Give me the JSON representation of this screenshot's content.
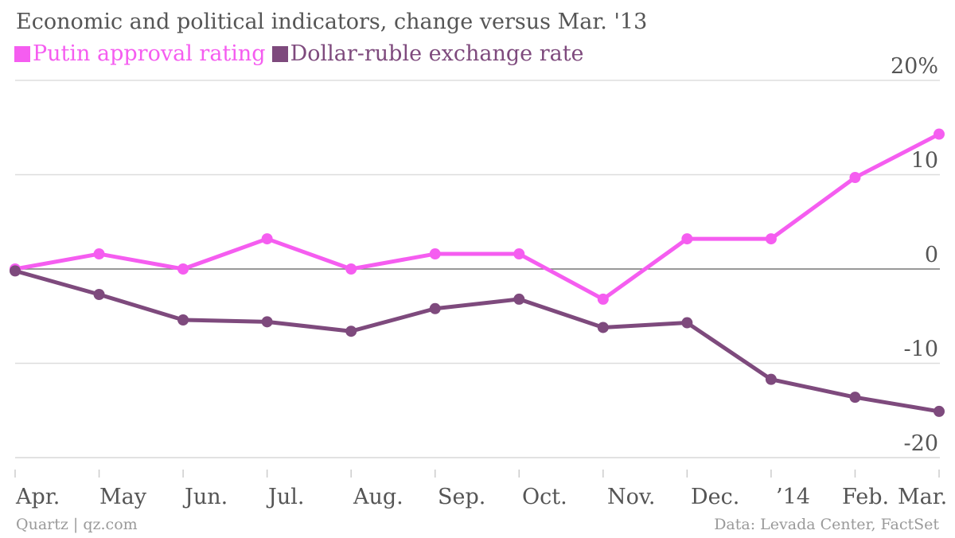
{
  "chart_data": {
    "type": "line",
    "title": "Economic and political indicators, change versus Mar. '13",
    "categories": [
      "Apr.",
      "May",
      "Jun.",
      "Jul.",
      "Aug.",
      "Sep.",
      "Oct.",
      "Nov.",
      "Dec.",
      "’14",
      "Feb.",
      "Mar."
    ],
    "y_ticks": [
      "20%",
      "10",
      "0",
      "-10",
      "-20"
    ],
    "ylim": [
      -20,
      20
    ],
    "grid": true,
    "legend_position": "top-left",
    "series": [
      {
        "name": "Putin approval rating",
        "color": "#f55df0",
        "values": [
          0,
          1.6,
          0,
          3.2,
          0,
          1.6,
          1.6,
          -3.2,
          3.2,
          3.2,
          9.7,
          14.3
        ]
      },
      {
        "name": "Dollar-ruble exchange rate",
        "color": "#7e4a7d",
        "values": [
          -0.2,
          -2.7,
          -5.4,
          -5.6,
          -6.6,
          -4.2,
          -3.2,
          -6.2,
          -5.7,
          -11.7,
          -13.6,
          -15.1
        ]
      }
    ]
  },
  "footer": {
    "source_left": "Quartz | qz.com",
    "source_right": "Data: Levada Center, FactSet"
  }
}
